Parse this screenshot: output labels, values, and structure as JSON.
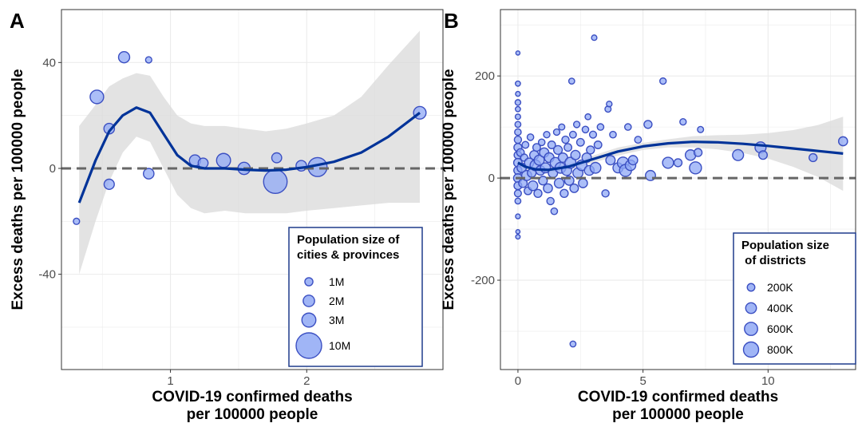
{
  "colors": {
    "point_fill": "#8fa8f5",
    "point_stroke": "#3b4fc2",
    "smooth_line": "#003399",
    "ribbon": "#d9d9d9",
    "reference_line": "#666666",
    "grid": "#ebebeb",
    "legend_border": "#1f3c8c"
  },
  "chart_data": [
    {
      "panel_label": "A",
      "type": "scatter",
      "xlabel": "COVID-19 confirmed deaths\nper 100000 people",
      "ylabel": "Excess deaths per 100000 people",
      "xlim": [
        0.2,
        3.0
      ],
      "ylim": [
        -76,
        60
      ],
      "x_ticks": [
        1,
        2
      ],
      "x_tick_labels": [
        "1",
        "2"
      ],
      "y_ticks": [
        -40,
        0,
        40
      ],
      "y_tick_labels": [
        "-40",
        "0",
        "40"
      ],
      "reference_line_y": 0,
      "grid": true,
      "legend": {
        "title": "Population size of\ncities & provinces",
        "position": "bottom-right",
        "entries": [
          {
            "label": "1M",
            "size": 1000000
          },
          {
            "label": "2M",
            "size": 2000000
          },
          {
            "label": "3M",
            "size": 3000000
          },
          {
            "label": "10M",
            "size": 10000000
          }
        ]
      },
      "points": [
        {
          "x": 0.31,
          "y": -20,
          "size": 600000
        },
        {
          "x": 0.46,
          "y": 27,
          "size": 2800000
        },
        {
          "x": 0.55,
          "y": 15,
          "size": 1700000
        },
        {
          "x": 0.55,
          "y": -6,
          "size": 1600000
        },
        {
          "x": 0.66,
          "y": 42,
          "size": 1900000
        },
        {
          "x": 0.84,
          "y": 41,
          "size": 600000
        },
        {
          "x": 0.84,
          "y": -2,
          "size": 1700000
        },
        {
          "x": 1.18,
          "y": 3,
          "size": 1900000
        },
        {
          "x": 1.24,
          "y": 2,
          "size": 1500000
        },
        {
          "x": 1.39,
          "y": 3,
          "size": 3000000
        },
        {
          "x": 1.54,
          "y": 0,
          "size": 2300000
        },
        {
          "x": 1.77,
          "y": -5,
          "size": 8500000
        },
        {
          "x": 1.78,
          "y": 4,
          "size": 1500000
        },
        {
          "x": 1.96,
          "y": 1,
          "size": 1700000
        },
        {
          "x": 2.08,
          "y": 0.5,
          "size": 5500000
        },
        {
          "x": 2.83,
          "y": 21,
          "size": 2400000
        }
      ],
      "smooth": {
        "x": [
          0.33,
          0.45,
          0.55,
          0.65,
          0.75,
          0.85,
          0.95,
          1.05,
          1.15,
          1.25,
          1.4,
          1.55,
          1.7,
          1.85,
          2.0,
          2.2,
          2.4,
          2.6,
          2.83
        ],
        "y": [
          -13,
          3,
          14,
          20,
          23,
          21,
          13,
          5,
          1,
          0,
          0,
          -0.5,
          -0.8,
          -0.5,
          0.5,
          2.5,
          6,
          12,
          21
        ],
        "lower": [
          -40,
          -20,
          -5,
          6,
          12,
          10,
          0,
          -10,
          -15,
          -17,
          -16,
          -17,
          -17,
          -17,
          -16,
          -15,
          -14,
          -13,
          -13
        ],
        "upper": [
          16,
          24,
          31,
          34,
          36,
          35,
          27,
          20,
          17,
          16,
          16,
          15,
          14,
          15,
          17,
          20,
          27,
          39,
          52
        ]
      }
    },
    {
      "panel_label": "B",
      "type": "scatter",
      "xlabel": "COVID-19 confirmed deaths\nper 100000 people",
      "ylabel": "Excess deaths per 100000 people",
      "xlim": [
        -0.7,
        13.5
      ],
      "ylim": [
        -375,
        330
      ],
      "x_ticks": [
        0,
        5,
        10
      ],
      "x_tick_labels": [
        "0",
        "5",
        "10"
      ],
      "y_ticks": [
        -200,
        0,
        200
      ],
      "y_tick_labels": [
        "-200",
        "0",
        "200"
      ],
      "reference_line_y": 0,
      "grid": true,
      "legend": {
        "title": "Population size\n of districts",
        "position": "bottom-right",
        "entries": [
          {
            "label": "200K",
            "size": 200000
          },
          {
            "label": "400K",
            "size": 400000
          },
          {
            "label": "600K",
            "size": 600000
          },
          {
            "label": "800K",
            "size": 800000
          }
        ]
      },
      "points": [
        {
          "x": 0.0,
          "y": 245,
          "size": 60000
        },
        {
          "x": 0.0,
          "y": 185,
          "size": 90000
        },
        {
          "x": 0.0,
          "y": 165,
          "size": 80000
        },
        {
          "x": 0.0,
          "y": 148,
          "size": 110000
        },
        {
          "x": 0.0,
          "y": 135,
          "size": 90000
        },
        {
          "x": 0.0,
          "y": 120,
          "size": 100000
        },
        {
          "x": 0.0,
          "y": 105,
          "size": 120000
        },
        {
          "x": 0.0,
          "y": 90,
          "size": 150000
        },
        {
          "x": 0.0,
          "y": 75,
          "size": 180000
        },
        {
          "x": 0.0,
          "y": 60,
          "size": 220000
        },
        {
          "x": 0.0,
          "y": 45,
          "size": 200000
        },
        {
          "x": 0.0,
          "y": 30,
          "size": 250000
        },
        {
          "x": 0.0,
          "y": 15,
          "size": 230000
        },
        {
          "x": 0.0,
          "y": 0,
          "size": 260000
        },
        {
          "x": 0.0,
          "y": -15,
          "size": 210000
        },
        {
          "x": 0.0,
          "y": -30,
          "size": 170000
        },
        {
          "x": 0.0,
          "y": -45,
          "size": 120000
        },
        {
          "x": 0.0,
          "y": -75,
          "size": 80000
        },
        {
          "x": 0.0,
          "y": -105,
          "size": 60000
        },
        {
          "x": 0.0,
          "y": -115,
          "size": 70000
        },
        {
          "x": 0.1,
          "y": 50,
          "size": 200000
        },
        {
          "x": 0.15,
          "y": 20,
          "size": 300000
        },
        {
          "x": 0.2,
          "y": -10,
          "size": 250000
        },
        {
          "x": 0.25,
          "y": 40,
          "size": 180000
        },
        {
          "x": 0.3,
          "y": 65,
          "size": 160000
        },
        {
          "x": 0.35,
          "y": 5,
          "size": 350000
        },
        {
          "x": 0.4,
          "y": -25,
          "size": 200000
        },
        {
          "x": 0.45,
          "y": 30,
          "size": 300000
        },
        {
          "x": 0.5,
          "y": 80,
          "size": 150000
        },
        {
          "x": 0.55,
          "y": 10,
          "size": 260000
        },
        {
          "x": 0.6,
          "y": -15,
          "size": 320000
        },
        {
          "x": 0.65,
          "y": 45,
          "size": 280000
        },
        {
          "x": 0.7,
          "y": 25,
          "size": 400000
        },
        {
          "x": 0.75,
          "y": 60,
          "size": 200000
        },
        {
          "x": 0.8,
          "y": -30,
          "size": 220000
        },
        {
          "x": 0.85,
          "y": 35,
          "size": 350000
        },
        {
          "x": 0.9,
          "y": 15,
          "size": 300000
        },
        {
          "x": 0.95,
          "y": 70,
          "size": 150000
        },
        {
          "x": 1.0,
          "y": -5,
          "size": 260000
        },
        {
          "x": 1.05,
          "y": 50,
          "size": 300000
        },
        {
          "x": 1.1,
          "y": 20,
          "size": 350000
        },
        {
          "x": 1.15,
          "y": 85,
          "size": 140000
        },
        {
          "x": 1.2,
          "y": -20,
          "size": 280000
        },
        {
          "x": 1.25,
          "y": 40,
          "size": 320000
        },
        {
          "x": 1.3,
          "y": -45,
          "size": 180000
        },
        {
          "x": 1.35,
          "y": 65,
          "size": 200000
        },
        {
          "x": 1.4,
          "y": 10,
          "size": 300000
        },
        {
          "x": 1.45,
          "y": -65,
          "size": 150000
        },
        {
          "x": 1.5,
          "y": 30,
          "size": 380000
        },
        {
          "x": 1.55,
          "y": 90,
          "size": 140000
        },
        {
          "x": 1.6,
          "y": 55,
          "size": 260000
        },
        {
          "x": 1.65,
          "y": -10,
          "size": 320000
        },
        {
          "x": 1.7,
          "y": 20,
          "size": 400000
        },
        {
          "x": 1.75,
          "y": 100,
          "size": 130000
        },
        {
          "x": 1.8,
          "y": 40,
          "size": 300000
        },
        {
          "x": 1.85,
          "y": -30,
          "size": 220000
        },
        {
          "x": 1.9,
          "y": 75,
          "size": 180000
        },
        {
          "x": 1.95,
          "y": 15,
          "size": 350000
        },
        {
          "x": 2.0,
          "y": 60,
          "size": 200000
        },
        {
          "x": 2.05,
          "y": -5,
          "size": 300000
        },
        {
          "x": 2.1,
          "y": 30,
          "size": 420000
        },
        {
          "x": 2.15,
          "y": 190,
          "size": 120000
        },
        {
          "x": 2.2,
          "y": -325,
          "size": 120000
        },
        {
          "x": 2.2,
          "y": 85,
          "size": 160000
        },
        {
          "x": 2.25,
          "y": -20,
          "size": 250000
        },
        {
          "x": 2.3,
          "y": 45,
          "size": 300000
        },
        {
          "x": 2.35,
          "y": 105,
          "size": 140000
        },
        {
          "x": 2.4,
          "y": 10,
          "size": 350000
        },
        {
          "x": 2.5,
          "y": 70,
          "size": 200000
        },
        {
          "x": 2.55,
          "y": 25,
          "size": 380000
        },
        {
          "x": 2.6,
          "y": -10,
          "size": 280000
        },
        {
          "x": 2.7,
          "y": 95,
          "size": 150000
        },
        {
          "x": 2.75,
          "y": 40,
          "size": 300000
        },
        {
          "x": 2.8,
          "y": 120,
          "size": 120000
        },
        {
          "x": 2.85,
          "y": 15,
          "size": 330000
        },
        {
          "x": 2.9,
          "y": 55,
          "size": 220000
        },
        {
          "x": 3.0,
          "y": 85,
          "size": 170000
        },
        {
          "x": 3.05,
          "y": 275,
          "size": 100000
        },
        {
          "x": 3.1,
          "y": 20,
          "size": 400000
        },
        {
          "x": 3.2,
          "y": 65,
          "size": 200000
        },
        {
          "x": 3.3,
          "y": 100,
          "size": 150000
        },
        {
          "x": 3.5,
          "y": -30,
          "size": 180000
        },
        {
          "x": 3.6,
          "y": 135,
          "size": 130000
        },
        {
          "x": 3.65,
          "y": 145,
          "size": 110000
        },
        {
          "x": 3.7,
          "y": 35,
          "size": 300000
        },
        {
          "x": 3.8,
          "y": 85,
          "size": 150000
        },
        {
          "x": 4.0,
          "y": 20,
          "size": 350000
        },
        {
          "x": 4.2,
          "y": 30,
          "size": 450000
        },
        {
          "x": 4.3,
          "y": 15,
          "size": 500000
        },
        {
          "x": 4.4,
          "y": 100,
          "size": 150000
        },
        {
          "x": 4.5,
          "y": 25,
          "size": 380000
        },
        {
          "x": 4.6,
          "y": 35,
          "size": 300000
        },
        {
          "x": 4.8,
          "y": 75,
          "size": 160000
        },
        {
          "x": 5.2,
          "y": 105,
          "size": 220000
        },
        {
          "x": 5.3,
          "y": 5,
          "size": 350000
        },
        {
          "x": 5.8,
          "y": 190,
          "size": 140000
        },
        {
          "x": 6.0,
          "y": 30,
          "size": 420000
        },
        {
          "x": 6.4,
          "y": 30,
          "size": 220000
        },
        {
          "x": 6.6,
          "y": 110,
          "size": 140000
        },
        {
          "x": 6.9,
          "y": 45,
          "size": 380000
        },
        {
          "x": 7.1,
          "y": 20,
          "size": 500000
        },
        {
          "x": 7.2,
          "y": 50,
          "size": 220000
        },
        {
          "x": 7.3,
          "y": 95,
          "size": 130000
        },
        {
          "x": 8.8,
          "y": 45,
          "size": 420000
        },
        {
          "x": 9.7,
          "y": 60,
          "size": 420000
        },
        {
          "x": 9.8,
          "y": 45,
          "size": 250000
        },
        {
          "x": 11.8,
          "y": 40,
          "size": 220000
        },
        {
          "x": 13.0,
          "y": 72,
          "size": 280000
        }
      ],
      "smooth": {
        "x": [
          0.0,
          0.3,
          0.7,
          1.2,
          2.0,
          3.0,
          4.0,
          5.0,
          6.0,
          7.0,
          8.0,
          9.0,
          10.0,
          11.0,
          12.0,
          13.0
        ],
        "y": [
          30,
          22,
          17,
          16,
          22,
          37,
          52,
          62,
          68,
          71,
          70,
          67,
          63,
          58,
          53,
          48
        ],
        "lower": [
          23,
          16,
          12,
          11,
          16,
          30,
          44,
          55,
          60,
          60,
          56,
          49,
          38,
          22,
          2,
          -25
        ],
        "upper": [
          37,
          28,
          22,
          21,
          28,
          44,
          60,
          69,
          76,
          82,
          84,
          85,
          88,
          94,
          104,
          120
        ]
      }
    }
  ]
}
